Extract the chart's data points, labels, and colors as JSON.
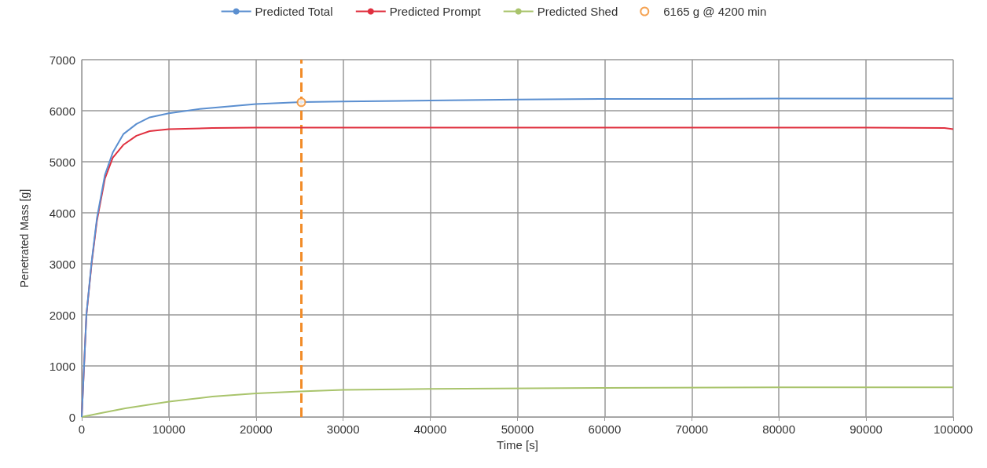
{
  "chart_data": {
    "type": "line",
    "xlabel": "Time [s]",
    "ylabel": "Penetrated Mass [g]",
    "xlim": [
      0,
      100000
    ],
    "xticks": [
      0,
      10000,
      20000,
      30000,
      40000,
      50000,
      60000,
      70000,
      80000,
      90000,
      100000
    ],
    "ylim": [
      0,
      7000
    ],
    "yticks": [
      0,
      1000,
      2000,
      3000,
      4000,
      5000,
      6000,
      7000
    ],
    "grid": true,
    "legend": "top",
    "marker": "none",
    "line_style": "solid",
    "ref_lines": [
      {
        "axis": "x",
        "value": 25200,
        "label": null,
        "color": "#f28c28",
        "line_style": "dashed"
      }
    ],
    "series": [
      {
        "name": "Predicted Total",
        "color": "#5b8fd0",
        "x": [
          0,
          540,
          1150,
          1750,
          2660,
          3560,
          4770,
          6280,
          7800,
          10000,
          13800,
          20000,
          25200,
          30000,
          40000,
          50000,
          60000,
          70000,
          80000,
          90000,
          100000
        ],
        "values": [
          0,
          2010,
          3060,
          3900,
          4740,
          5180,
          5540,
          5740,
          5870,
          5950,
          6040,
          6130,
          6170,
          6180,
          6200,
          6220,
          6230,
          6230,
          6240,
          6240,
          6240
        ]
      },
      {
        "name": "Predicted Prompt",
        "color": "#e0303f",
        "x": [
          0,
          540,
          1150,
          1750,
          2660,
          3560,
          4770,
          6280,
          7800,
          10000,
          15000,
          20000,
          30000,
          50000,
          70000,
          90000,
          99000,
          100000
        ],
        "values": [
          0,
          2000,
          3030,
          3850,
          4670,
          5080,
          5330,
          5510,
          5600,
          5640,
          5660,
          5670,
          5670,
          5670,
          5670,
          5670,
          5660,
          5640
        ]
      },
      {
        "name": "Predicted Shed",
        "color": "#a9c46c",
        "x": [
          0,
          2000,
          5000,
          10000,
          15000,
          20000,
          25000,
          30000,
          40000,
          60000,
          80000,
          100000
        ],
        "values": [
          0,
          70,
          170,
          300,
          400,
          460,
          500,
          530,
          550,
          570,
          580,
          580
        ]
      },
      {
        "name": "6165 g @ 4200 min",
        "type": "scatter",
        "marker": "circle",
        "color": "#f28c28",
        "x": [
          25200
        ],
        "values": [
          6165
        ]
      }
    ]
  }
}
